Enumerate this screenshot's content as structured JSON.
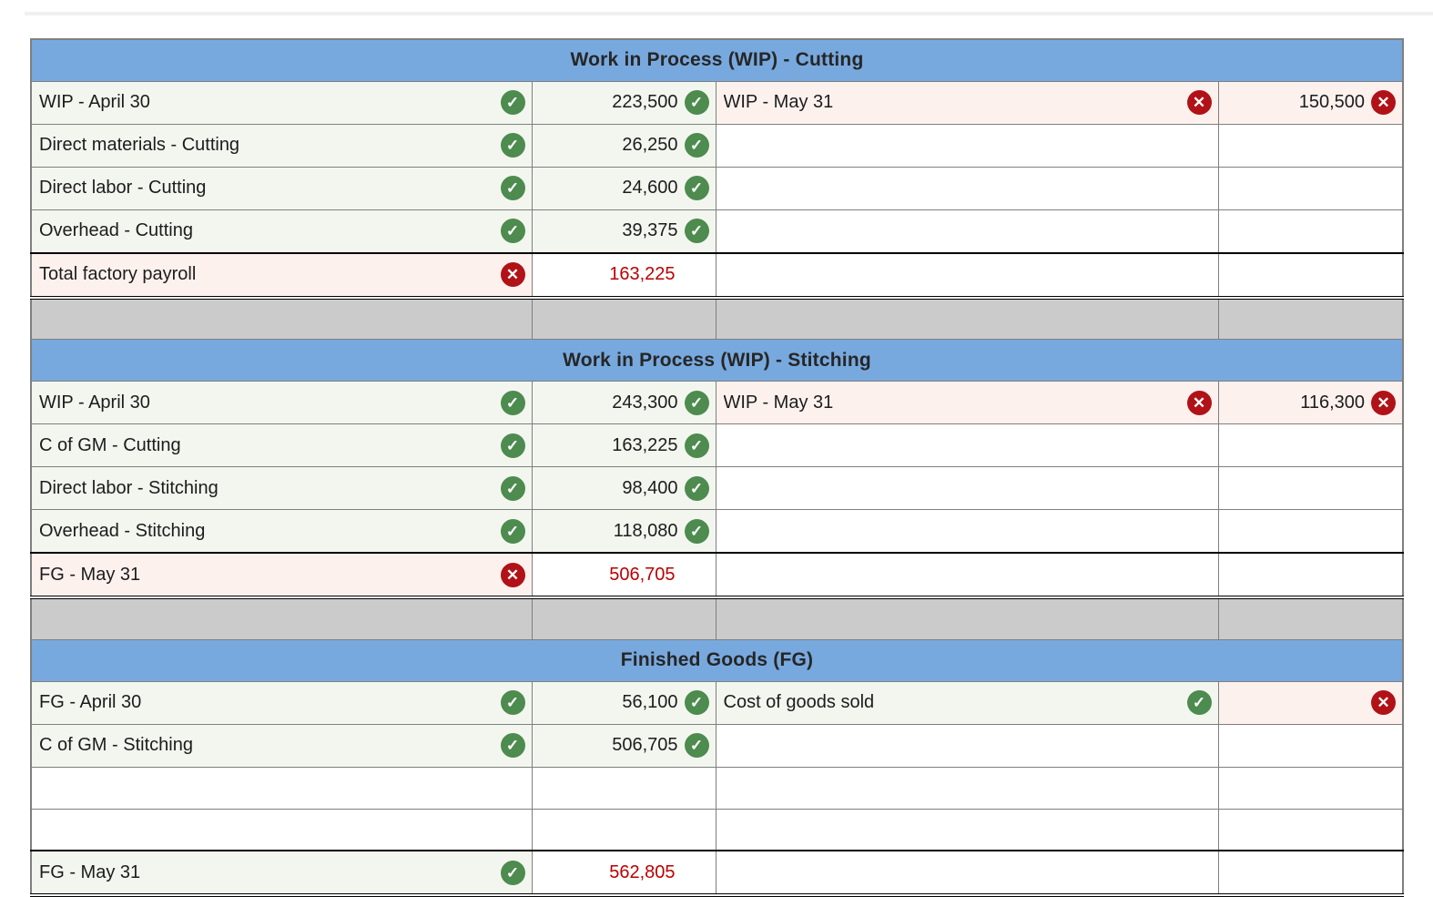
{
  "colors": {
    "header_blue": "#78a9de",
    "correct_green": "#4d8b4f",
    "incorrect_red": "#b01217",
    "error_text_red": "#bb0000",
    "correct_cell_tint": "#f3f6ef",
    "incorrect_cell_tint": "#fdf1ee",
    "separator_gray": "#cbcbcb"
  },
  "icons": {
    "check": {
      "name": "check-icon",
      "glyph": "✓"
    },
    "x": {
      "name": "x-icon",
      "glyph": "✕"
    }
  },
  "tables": [
    {
      "title": "Work in Process (WIP) - Cutting",
      "rows": [
        {
          "left_label": "WIP - April 30",
          "left_label_status": "correct",
          "left_value": "223,500",
          "left_value_status": "correct",
          "right_label": "WIP - May 31",
          "right_label_status": "incorrect",
          "right_value": "150,500",
          "right_value_status": "incorrect"
        },
        {
          "left_label": "Direct materials - Cutting",
          "left_label_status": "correct",
          "left_value": "26,250",
          "left_value_status": "correct"
        },
        {
          "left_label": "Direct labor - Cutting",
          "left_label_status": "correct",
          "left_value": "24,600",
          "left_value_status": "correct"
        },
        {
          "left_label": "Overhead - Cutting",
          "left_label_status": "correct",
          "left_value": "39,375",
          "left_value_status": "correct"
        },
        {
          "left_label": "Total factory payroll",
          "left_label_status": "incorrect",
          "left_value": "163,225",
          "left_value_status": "error-value",
          "is_total": true
        }
      ]
    },
    {
      "title": "Work in Process (WIP) - Stitching",
      "rows": [
        {
          "left_label": "WIP - April 30",
          "left_label_status": "correct",
          "left_value": "243,300",
          "left_value_status": "correct",
          "right_label": "WIP - May 31",
          "right_label_status": "incorrect",
          "right_value": "116,300",
          "right_value_status": "incorrect"
        },
        {
          "left_label": "C of GM - Cutting",
          "left_label_status": "correct",
          "left_value": "163,225",
          "left_value_status": "correct"
        },
        {
          "left_label": "Direct labor - Stitching",
          "left_label_status": "correct",
          "left_value": "98,400",
          "left_value_status": "correct"
        },
        {
          "left_label": "Overhead - Stitching",
          "left_label_status": "correct",
          "left_value": "118,080",
          "left_value_status": "correct"
        },
        {
          "left_label": "FG - May 31",
          "left_label_status": "incorrect",
          "left_value": "506,705",
          "left_value_status": "error-value",
          "is_total": true
        }
      ]
    },
    {
      "title": "Finished Goods (FG)",
      "rows": [
        {
          "left_label": "FG - April 30",
          "left_label_status": "correct",
          "left_value": "56,100",
          "left_value_status": "correct",
          "right_label": "Cost of goods sold",
          "right_label_status": "correct",
          "right_value": "",
          "right_value_status": "incorrect"
        },
        {
          "left_label": "C of GM - Stitching",
          "left_label_status": "correct",
          "left_value": "506,705",
          "left_value_status": "correct"
        },
        {
          "left_label": "",
          "left_value": ""
        },
        {
          "left_label": "",
          "left_value": ""
        },
        {
          "left_label": "FG - May 31",
          "left_label_status": "correct",
          "left_value": "562,805",
          "left_value_status": "error-value",
          "is_total": true
        }
      ]
    }
  ]
}
